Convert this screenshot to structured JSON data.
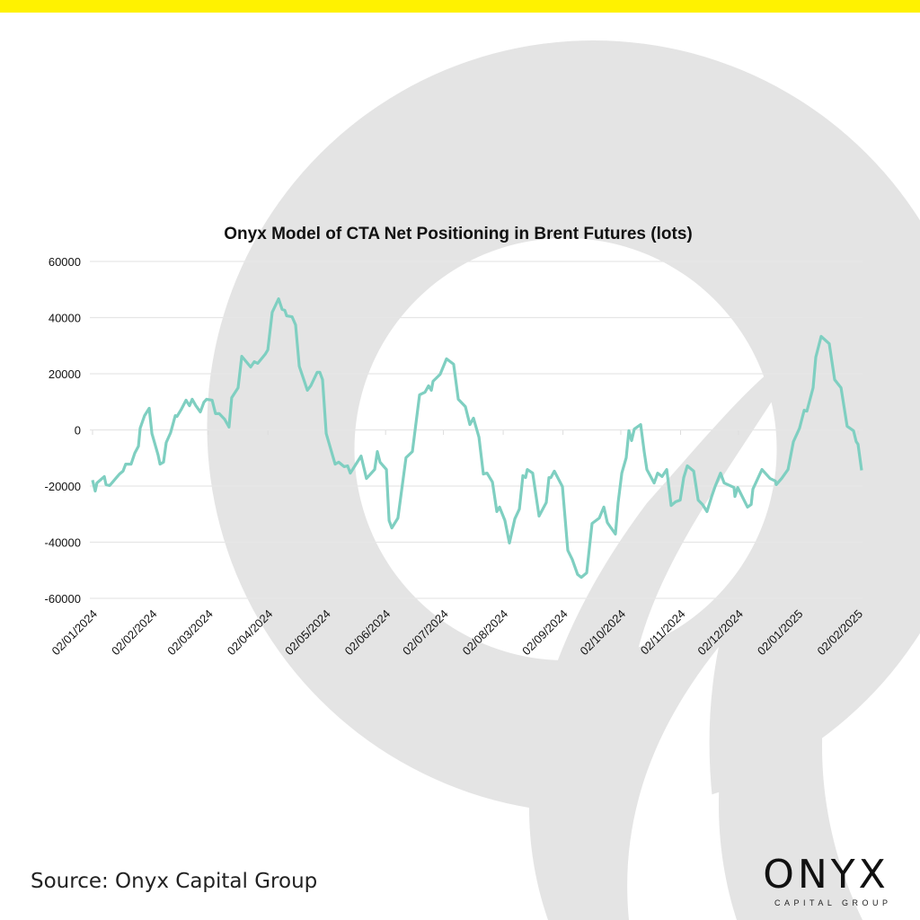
{
  "colors": {
    "accent_bar": "#fff200",
    "line": "#7fcfc1",
    "watermark": "#e4e4e4",
    "grid": "#e6e6e6"
  },
  "source": "Source: Onyx Capital Group",
  "logo": {
    "word": "ONYX",
    "sub": "CAPITAL GROUP"
  },
  "chart_data": {
    "type": "line",
    "title": "Onyx Model of CTA Net Positioning in Brent Futures (lots)",
    "xlabel": "",
    "ylabel": "",
    "ylim": [
      -60000,
      60000
    ],
    "yticks": [
      60000,
      40000,
      20000,
      0,
      -20000,
      -40000,
      -60000
    ],
    "ytick_labels": [
      "60000",
      "40000",
      "20000",
      "0",
      "-20000",
      "-40000",
      "-60000"
    ],
    "x_unit": "days since 02/01/2024",
    "xlim": [
      0,
      399
    ],
    "xticks": [
      0,
      31,
      60,
      91,
      121,
      152,
      182,
      213,
      244,
      274,
      305,
      335,
      366,
      397
    ],
    "xtick_labels": [
      "02/01/2024",
      "02/02/2024",
      "02/03/2024",
      "02/04/2024",
      "02/05/2024",
      "02/06/2024",
      "02/07/2024",
      "02/08/2024",
      "02/09/2024",
      "02/10/2024",
      "02/11/2024",
      "02/12/2024",
      "02/01/2025",
      "02/02/2025"
    ],
    "grid": true,
    "series": [
      {
        "name": "CTA Net Positioning",
        "x": [
          0,
          1.4,
          2.3,
          6.1,
          7,
          8.9,
          14,
          15.8,
          17.2,
          20,
          21.9,
          23.8,
          24.7,
          27,
          29.4,
          30.8,
          34,
          35,
          36.8,
          38.2,
          40.5,
          42.9,
          43.8,
          46.1,
          48.5,
          50.3,
          51.7,
          53.6,
          55.9,
          57.8,
          59.2,
          62,
          63.8,
          65.7,
          68.5,
          70.8,
          72.2,
          75.5,
          77.4,
          82,
          83.9,
          85.7,
          89.5,
          90.9,
          93.2,
          96.5,
          98.3,
          99.7,
          100.7,
          103.5,
          105.3,
          107.2,
          111.4,
          113.2,
          116.5,
          117.9,
          119.3,
          121.2,
          125.8,
          127.7,
          130.5,
          132.3,
          133.7,
          139.3,
          142.1,
          146.3,
          147.7,
          149.1,
          152.4,
          153.8,
          155.2,
          158.4,
          162.6,
          165.9,
          169.6,
          172.4,
          174.3,
          175.7,
          176.6,
          180.3,
          183.6,
          187.3,
          189.7,
          193.4,
          195.7,
          197.6,
          200.4,
          202.7,
          204.6,
          207.4,
          209.7,
          211.1,
          213.9,
          216.2,
          219,
          221.4,
          223.2,
          224.6,
          225.5,
          228.3,
          231.6,
          235.3,
          236.7,
          237.7,
          239.5,
          243.7,
          246.5,
          248.8,
          251.6,
          253.5,
          256.3,
          259.1,
          262.8,
          265.2,
          267,
          268.9,
          271.2,
          272.6,
          274.5,
          276.8,
          278.2,
          279.6,
          281,
          284.3,
          286.1,
          287.5,
          291.3,
          293.1,
          295.4,
          297.8,
          300.1,
          302.4,
          304.8,
          306.6,
          308.5,
          311.8,
          314.1,
          316.4,
          318.7,
          321.1,
          322.9,
          325.7,
          327.6,
          332.7,
          333.2,
          334.6,
          339.7,
          341.6,
          342.5,
          347.2,
          351.4,
          354.2,
          354.6,
          357.4,
          360.7,
          363.5,
          366.7,
          369.1,
          370.5,
          373.7,
          375.1,
          377.9,
          382.1,
          384.9,
          388.2,
          391.4,
          394.7,
          396.1,
          397,
          398.9
        ],
        "y": [
          -17900,
          -21800,
          -18900,
          -16600,
          -19500,
          -19800,
          -15700,
          -14700,
          -12200,
          -12200,
          -8300,
          -5800,
          600,
          5100,
          7700,
          -1300,
          -9000,
          -12200,
          -11500,
          -4500,
          -1000,
          5100,
          4800,
          7400,
          10600,
          8600,
          10900,
          8600,
          6400,
          9900,
          10900,
          10600,
          5800,
          5800,
          3800,
          1000,
          11500,
          15000,
          26200,
          22400,
          24300,
          23700,
          26900,
          28500,
          41900,
          46700,
          42900,
          42600,
          40600,
          40300,
          37400,
          22700,
          14100,
          15700,
          20500,
          20500,
          17900,
          -1300,
          -12200,
          -11500,
          -13100,
          -12800,
          -15400,
          -9300,
          -17300,
          -14100,
          -7700,
          -11500,
          -14100,
          -32300,
          -34900,
          -31400,
          -9900,
          -7700,
          12500,
          13400,
          15700,
          14100,
          17300,
          19800,
          25300,
          23400,
          10900,
          8300,
          1900,
          4200,
          -2600,
          -15700,
          -15400,
          -18600,
          -29100,
          -27500,
          -32300,
          -40300,
          -31700,
          -28200,
          -16300,
          -17000,
          -14100,
          -15400,
          -30700,
          -25900,
          -17000,
          -17000,
          -14700,
          -20200,
          -42900,
          -46100,
          -51500,
          -52500,
          -50900,
          -33300,
          -31400,
          -27500,
          -33000,
          -34900,
          -37100,
          -25900,
          -15400,
          -9900,
          -300,
          -3800,
          300,
          1900,
          -7700,
          -14100,
          -18900,
          -15400,
          -16600,
          -14100,
          -26900,
          -25600,
          -25000,
          -17000,
          -12800,
          -14700,
          -25000,
          -26600,
          -29100,
          -23700,
          -20200,
          -15400,
          -18900,
          -20500,
          -23700,
          -20500,
          -27500,
          -26600,
          -21100,
          -14100,
          -17300,
          -18200,
          -19500,
          -17300,
          -14100,
          -4200,
          600,
          7000,
          6700,
          15000,
          25900,
          33300,
          30700,
          17900,
          15000,
          1300,
          -300,
          -4200,
          -5100,
          -14400
        ]
      }
    ]
  }
}
